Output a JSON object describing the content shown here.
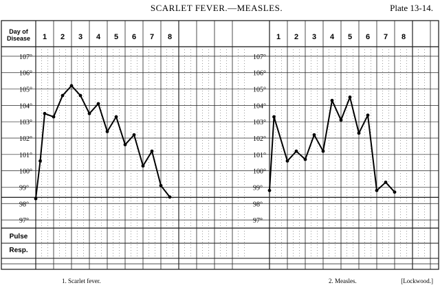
{
  "header": {
    "title": "SCARLET FEVER.—MEASLES.",
    "plate": "Plate 13-14."
  },
  "table": {
    "day_label_1": "Day of",
    "day_label_2": "Disease",
    "row_labels": {
      "pulse": "Pulse",
      "resp": "Resp."
    }
  },
  "captions": {
    "left": "1.   Scarlet fever.",
    "right": "2.   Measles.",
    "credit": "[Lockwood.]"
  },
  "chart_data": [
    {
      "type": "line",
      "title": "Scarlet fever.",
      "x_label": "Day of Disease",
      "x_categories": [
        "1",
        "2",
        "3",
        "4",
        "5",
        "6",
        "7",
        "8"
      ],
      "y_tick_labels": [
        "107°",
        "106°",
        "105°",
        "104°",
        "103°",
        "102°",
        "101°",
        "100°",
        "99°",
        "98°",
        "97°"
      ],
      "ylim": [
        96.5,
        107.5
      ],
      "grid": true,
      "series": [
        {
          "values": [
            {
              "x": 0.0,
              "y": 98.3
            },
            {
              "x": 0.25,
              "y": 100.6
            },
            {
              "x": 0.5,
              "y": 103.5
            },
            {
              "x": 1.0,
              "y": 103.3
            },
            {
              "x": 1.5,
              "y": 104.6
            },
            {
              "x": 2.0,
              "y": 105.2
            },
            {
              "x": 2.5,
              "y": 104.6
            },
            {
              "x": 3.0,
              "y": 103.5
            },
            {
              "x": 3.5,
              "y": 104.1
            },
            {
              "x": 4.0,
              "y": 102.4
            },
            {
              "x": 4.5,
              "y": 103.3
            },
            {
              "x": 5.0,
              "y": 101.6
            },
            {
              "x": 5.5,
              "y": 102.2
            },
            {
              "x": 6.0,
              "y": 100.3
            },
            {
              "x": 6.5,
              "y": 101.2
            },
            {
              "x": 7.0,
              "y": 99.1
            },
            {
              "x": 7.5,
              "y": 98.4
            }
          ]
        }
      ]
    },
    {
      "type": "line",
      "title": "Measles.",
      "x_label": "Day of Disease",
      "x_categories": [
        "1",
        "2",
        "3",
        "4",
        "5",
        "6",
        "7",
        "8"
      ],
      "y_tick_labels": [
        "107°",
        "106°",
        "105°",
        "104°",
        "103°",
        "102°",
        "101°",
        "100°",
        "99°",
        "98°",
        "97°"
      ],
      "ylim": [
        96.5,
        107.5
      ],
      "grid": true,
      "series": [
        {
          "values": [
            {
              "x": 0.0,
              "y": 98.8
            },
            {
              "x": 0.25,
              "y": 103.3
            },
            {
              "x": 1.0,
              "y": 100.6
            },
            {
              "x": 1.5,
              "y": 101.2
            },
            {
              "x": 2.0,
              "y": 100.7
            },
            {
              "x": 2.5,
              "y": 102.2
            },
            {
              "x": 3.0,
              "y": 101.2
            },
            {
              "x": 3.5,
              "y": 104.3
            },
            {
              "x": 4.0,
              "y": 103.1
            },
            {
              "x": 4.5,
              "y": 104.5
            },
            {
              "x": 5.0,
              "y": 102.3
            },
            {
              "x": 5.5,
              "y": 103.4
            },
            {
              "x": 6.0,
              "y": 98.8
            },
            {
              "x": 6.5,
              "y": 99.3
            },
            {
              "x": 7.0,
              "y": 98.7
            }
          ]
        }
      ]
    }
  ]
}
